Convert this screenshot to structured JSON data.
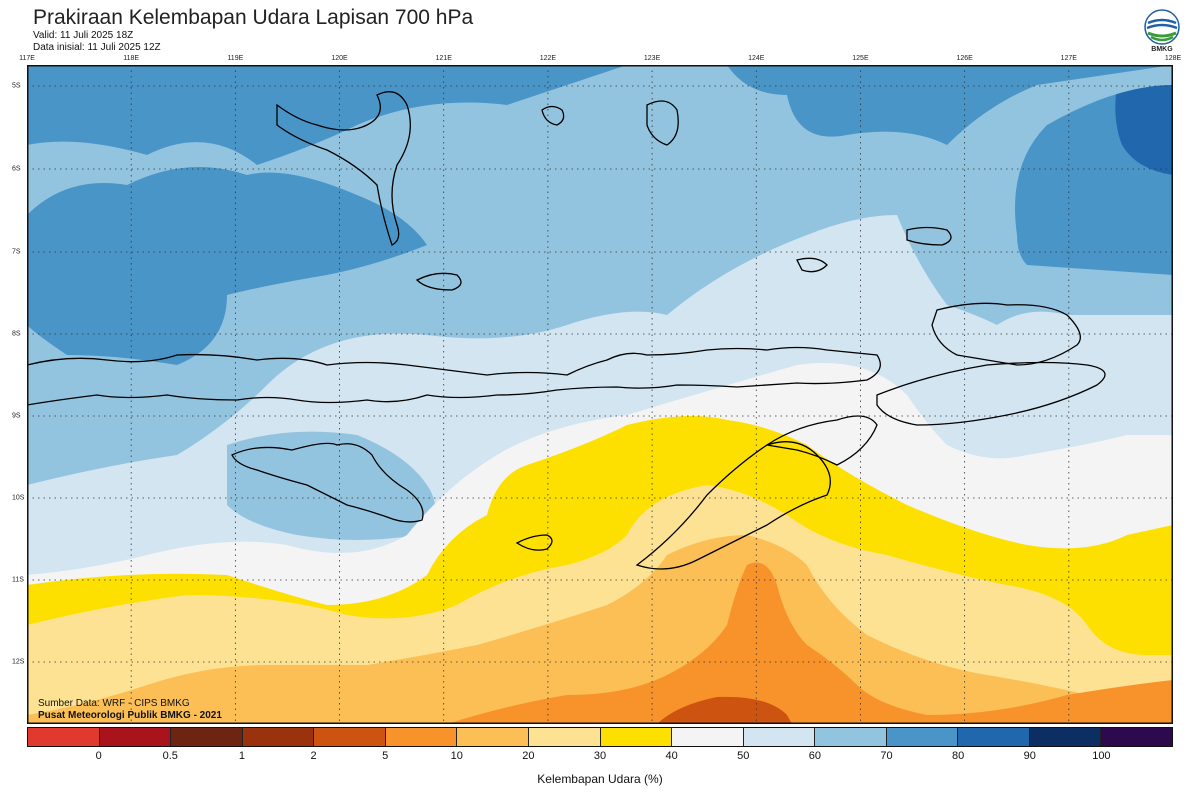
{
  "header": {
    "title": "Prakiraan Kelembapan Udara Lapisan 700 hPa",
    "valid": "Valid: 11 Juli 2025 18Z",
    "init": "Data inisial: 11 Juli 2025 12Z"
  },
  "logo": {
    "text": "BMKG"
  },
  "axes": {
    "longitude_labels": [
      "117E",
      "118E",
      "119E",
      "120E",
      "121E",
      "122E",
      "123E",
      "124E",
      "125E",
      "126E",
      "127E",
      "128E"
    ],
    "latitude_labels": [
      "5S",
      "6S",
      "7S",
      "8S",
      "9S",
      "10S",
      "11S",
      "12S"
    ]
  },
  "footer": {
    "source": "Sumber Data: WRF - CIPS BMKG",
    "credit": "Pusat Meteorologi Publik BMKG - 2021"
  },
  "legend": {
    "title": "Kelembapan Udara (%)",
    "ticks": [
      "0",
      "0.5",
      "1",
      "2",
      "5",
      "10",
      "20",
      "30",
      "40",
      "50",
      "60",
      "70",
      "80",
      "90",
      "100"
    ],
    "colors": [
      "#e03a2f",
      "#a9141c",
      "#6e2412",
      "#9a320e",
      "#cc5310",
      "#f7932a",
      "#fbbf55",
      "#fde294",
      "#fde000",
      "#f4f4f4",
      "#d2e5f1",
      "#93c4df",
      "#4a95c8",
      "#2167ae",
      "#0c2e63",
      "#2d0a4e"
    ]
  },
  "map_layers": {
    "colors": {
      "ocean_deep": "#4a95c8",
      "ocean_mid": "#93c4df",
      "ocean_light": "#d2e5f1",
      "white_band": "#f4f4f4",
      "yellow_band": "#fde000",
      "pale_yellow": "#fde294",
      "light_orange": "#fbbf55",
      "orange": "#f7932a",
      "dark_orange": "#cc5310",
      "brown": "#9a320e",
      "darkest_blue": "#2167ae"
    }
  }
}
